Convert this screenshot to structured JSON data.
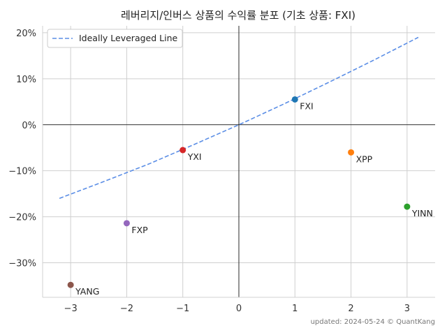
{
  "title": "레버리지/인버스 상품의 수익률 분포 (기초 상품: FXI)",
  "footer": "updated: 2024-05-24 © QuantKang",
  "chart_data": {
    "type": "scatter",
    "title": "레버리지/인버스 상품의 수익률 분포 (기초 상품: FXI)",
    "xlabel": "",
    "ylabel": "",
    "xlim": [
      -3.5,
      3.5
    ],
    "ylim": [
      -37.5,
      21.5
    ],
    "x_ticks": [
      -3,
      -2,
      -1,
      0,
      1,
      2,
      3
    ],
    "x_tick_labels": [
      "−3",
      "−2",
      "−1",
      "0",
      "1",
      "2",
      "3"
    ],
    "y_ticks": [
      20,
      10,
      0,
      -10,
      -20,
      -30
    ],
    "y_tick_labels": [
      "20%",
      "10%",
      "0%",
      "−10%",
      "−20%",
      "−30%"
    ],
    "grid": true,
    "legend_position": "top-left",
    "legend": [
      "Ideally Leveraged Line"
    ],
    "ideal_line": {
      "name": "Ideally Leveraged Line",
      "color": "#5b8ee6",
      "x": [
        -3.2,
        -2.4,
        -1.6,
        -0.8,
        0,
        0.8,
        1.6,
        2.4,
        3.2
      ],
      "y": [
        -16.0,
        -12.3,
        -8.5,
        -4.3,
        0,
        4.5,
        9.2,
        14.0,
        19.0
      ]
    },
    "points": [
      {
        "label": "FXI",
        "x": 1,
        "y": 5.5,
        "color": "#1f77b4"
      },
      {
        "label": "YXI",
        "x": -1,
        "y": -5.5,
        "color": "#d62728"
      },
      {
        "label": "XPP",
        "x": 2,
        "y": -6.0,
        "color": "#ff7f0e"
      },
      {
        "label": "YINN",
        "x": 3,
        "y": -17.8,
        "color": "#2ca02c"
      },
      {
        "label": "FXP",
        "x": -2,
        "y": -21.4,
        "color": "#9467bd"
      },
      {
        "label": "YANG",
        "x": -3,
        "y": -34.8,
        "color": "#8c564b"
      }
    ]
  }
}
